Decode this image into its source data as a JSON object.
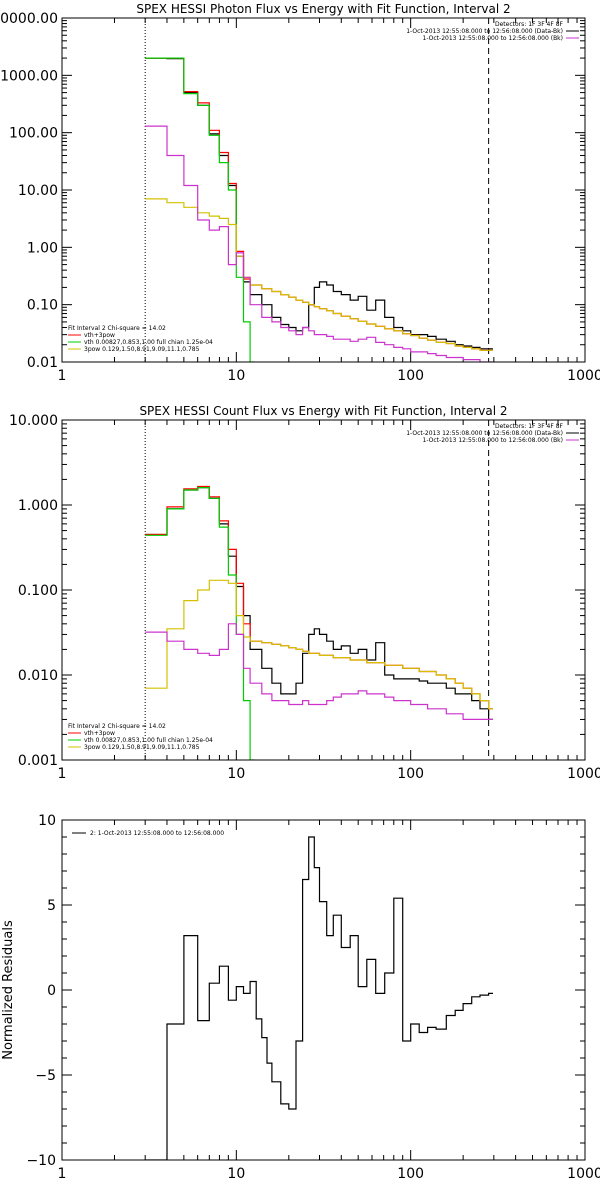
{
  "chart_data": [
    {
      "type": "line",
      "title": "SPEX HESSI Photon Flux vs Energy with Fit Function, Interval 2",
      "xscale": "log",
      "yscale": "log",
      "xlim": [
        1,
        1000
      ],
      "ylim": [
        0.01,
        10000
      ],
      "x_ticks": [
        "1",
        "10",
        "100",
        "1000"
      ],
      "y_ticks": [
        "0.01",
        "0.10",
        "1.00",
        "10.00",
        "100.00",
        "1000.00",
        "10000.00"
      ],
      "vlines": [
        {
          "x": 3,
          "style": "dotted"
        },
        {
          "x": 280,
          "style": "dashed"
        }
      ],
      "legend_right": [
        "Detectors: 1F 3F 4F 8F",
        "1-Oct-2013 12:55:08.000 to 12:56:08.000 (Data-Bk)",
        "1-Oct-2013 12:55:08.000 to 12:56:08.000 (Bk)"
      ],
      "legend_left": [
        "Fit Interval 2   Chi-square = 14.02",
        "vth+3pow",
        "vth 0.00827,0.853,1.00  full chian 1.25e-04",
        "3pow 0.129,1.50,8.91,9.09,11.1,0.785"
      ],
      "series": [
        {
          "name": "Data-Bk",
          "color": "#000000",
          "x": [
            3,
            4,
            5,
            6,
            7,
            8,
            9,
            10,
            11,
            12,
            14,
            16,
            18,
            20,
            22,
            24,
            26,
            28,
            30,
            33,
            36,
            40,
            45,
            50,
            56,
            63,
            71,
            80,
            90,
            100,
            112,
            125,
            140,
            160,
            180,
            200,
            224,
            250,
            280
          ],
          "y": [
            2000,
            1950,
            500,
            300,
            95,
            40,
            12,
            0.7,
            0.25,
            0.15,
            0.1,
            0.06,
            0.045,
            0.04,
            0.035,
            0.04,
            0.1,
            0.2,
            0.25,
            0.22,
            0.17,
            0.15,
            0.12,
            0.14,
            0.08,
            0.12,
            0.06,
            0.04,
            0.035,
            0.03,
            0.03,
            0.028,
            0.025,
            0.023,
            0.02,
            0.019,
            0.018,
            0.017,
            0.017
          ]
        },
        {
          "name": "vth+3pow",
          "color": "#ff0000",
          "x": [
            3,
            4,
            5,
            6,
            7,
            8,
            9,
            10,
            11,
            12,
            14,
            16,
            18,
            20,
            22,
            24,
            26,
            28,
            30,
            33,
            36,
            40,
            45,
            50,
            56,
            63,
            71,
            80,
            90,
            100,
            112,
            125,
            140,
            160,
            180,
            200,
            224,
            250,
            280
          ],
          "y": [
            2000,
            2000,
            520,
            330,
            110,
            45,
            13,
            0.85,
            0.28,
            0.22,
            0.19,
            0.17,
            0.15,
            0.135,
            0.12,
            0.11,
            0.1,
            0.092,
            0.085,
            0.078,
            0.07,
            0.063,
            0.057,
            0.051,
            0.046,
            0.042,
            0.038,
            0.035,
            0.031,
            0.029,
            0.026,
            0.024,
            0.022,
            0.021,
            0.019,
            0.018,
            0.017,
            0.016,
            0.016
          ]
        },
        {
          "name": "vth",
          "color": "#00cc00",
          "x": [
            3,
            4,
            5,
            6,
            7,
            8,
            9,
            10,
            11,
            12
          ],
          "y": [
            2000,
            2000,
            480,
            300,
            90,
            30,
            10,
            0.3,
            0.05,
            0.01
          ]
        },
        {
          "name": "3pow",
          "color": "#d4c000",
          "x": [
            3,
            4,
            5,
            6,
            7,
            8,
            9,
            10,
            11,
            12,
            14,
            16,
            18,
            20,
            22,
            24,
            26,
            28,
            30,
            33,
            36,
            40,
            45,
            50,
            56,
            63,
            71,
            80,
            90,
            100,
            112,
            125,
            140,
            160,
            180,
            200,
            224,
            250,
            280
          ],
          "y": [
            7,
            6,
            5,
            4,
            3.5,
            3.2,
            2.5,
            0.7,
            0.3,
            0.22,
            0.19,
            0.17,
            0.15,
            0.135,
            0.12,
            0.11,
            0.1,
            0.092,
            0.085,
            0.078,
            0.07,
            0.063,
            0.057,
            0.051,
            0.046,
            0.042,
            0.038,
            0.035,
            0.031,
            0.029,
            0.026,
            0.024,
            0.022,
            0.021,
            0.019,
            0.018,
            0.017,
            0.016,
            0.016
          ]
        },
        {
          "name": "Bk",
          "color": "#cc33cc",
          "x": [
            3,
            4,
            5,
            6,
            7,
            8,
            9,
            10,
            11,
            12,
            14,
            16,
            18,
            20,
            22,
            24,
            26,
            28,
            30,
            33,
            36,
            40,
            45,
            50,
            56,
            63,
            71,
            80,
            90,
            100,
            112,
            125,
            140,
            160,
            180,
            200,
            224,
            250,
            280
          ],
          "y": [
            130,
            40,
            12,
            3,
            2,
            2.3,
            0.5,
            0.8,
            0.3,
            0.1,
            0.06,
            0.05,
            0.04,
            0.035,
            0.03,
            0.04,
            0.035,
            0.03,
            0.03,
            0.028,
            0.025,
            0.025,
            0.023,
            0.025,
            0.027,
            0.022,
            0.02,
            0.018,
            0.017,
            0.015,
            0.015,
            0.014,
            0.013,
            0.012,
            0.012,
            0.011,
            0.011,
            0.01,
            0.01
          ]
        }
      ]
    },
    {
      "type": "line",
      "title": "SPEX HESSI Count Flux vs Energy with Fit Function, Interval 2",
      "xscale": "log",
      "yscale": "log",
      "xlim": [
        1,
        1000
      ],
      "ylim": [
        0.001,
        10
      ],
      "x_ticks": [
        "1",
        "10",
        "100",
        "1000"
      ],
      "y_ticks": [
        "0.001",
        "0.010",
        "0.100",
        "1.000",
        "10.000"
      ],
      "vlines": [
        {
          "x": 3,
          "style": "dotted"
        },
        {
          "x": 280,
          "style": "dashed"
        }
      ],
      "legend_right": [
        "Detectors: 1F 3F 4F 8F",
        "1-Oct-2013 12:55:08.000 to 12:56:08.000 (Data-Bk)",
        "1-Oct-2013 12:55:08.000 to 12:56:08.000 (Bk)"
      ],
      "legend_left": [
        "Fit Interval 2   Chi-square = 14.02",
        "vth+3pow",
        "vth 0.00827,0.853,1.00  full chian 1.25e-04",
        "3pow 0.129,1.50,8.91,9.09,11.1,0.785"
      ],
      "series": [
        {
          "name": "Data-Bk",
          "color": "#000000",
          "x": [
            3,
            4,
            5,
            6,
            7,
            8,
            9,
            10,
            11,
            12,
            14,
            16,
            18,
            20,
            22,
            24,
            26,
            28,
            30,
            33,
            36,
            40,
            45,
            50,
            56,
            63,
            71,
            80,
            90,
            100,
            112,
            125,
            140,
            160,
            180,
            200,
            224,
            250,
            280
          ],
          "y": [
            0.45,
            0.9,
            1.5,
            1.6,
            1.2,
            0.6,
            0.25,
            0.11,
            0.05,
            0.02,
            0.012,
            0.008,
            0.006,
            0.006,
            0.008,
            0.018,
            0.03,
            0.035,
            0.03,
            0.025,
            0.02,
            0.022,
            0.018,
            0.02,
            0.015,
            0.024,
            0.01,
            0.009,
            0.009,
            0.009,
            0.0085,
            0.008,
            0.008,
            0.007,
            0.006,
            0.006,
            0.005,
            0.004,
            0.003
          ]
        },
        {
          "name": "vth+3pow",
          "color": "#ff0000",
          "x": [
            3,
            4,
            5,
            6,
            7,
            8,
            9,
            10,
            11,
            12,
            14,
            16,
            18,
            20,
            22,
            24,
            26,
            28,
            30,
            33,
            36,
            40,
            45,
            50,
            56,
            63,
            71,
            80,
            90,
            100,
            112,
            125,
            140,
            160,
            180,
            200,
            224,
            250,
            280
          ],
          "y": [
            0.45,
            0.95,
            1.55,
            1.65,
            1.25,
            0.65,
            0.3,
            0.12,
            0.04,
            0.025,
            0.024,
            0.023,
            0.022,
            0.021,
            0.02,
            0.019,
            0.018,
            0.018,
            0.017,
            0.017,
            0.016,
            0.016,
            0.015,
            0.015,
            0.014,
            0.014,
            0.013,
            0.013,
            0.012,
            0.012,
            0.011,
            0.011,
            0.01,
            0.009,
            0.008,
            0.007,
            0.006,
            0.005,
            0.004
          ]
        },
        {
          "name": "vth",
          "color": "#00cc00",
          "x": [
            3,
            4,
            5,
            6,
            7,
            8,
            9,
            10,
            11,
            12
          ],
          "y": [
            0.44,
            0.9,
            1.5,
            1.6,
            1.2,
            0.55,
            0.15,
            0.03,
            0.005,
            0.001
          ]
        },
        {
          "name": "3pow",
          "color": "#d4c000",
          "x": [
            3,
            4,
            5,
            6,
            7,
            8,
            9,
            10,
            11,
            12,
            14,
            16,
            18,
            20,
            22,
            24,
            26,
            28,
            30,
            33,
            36,
            40,
            45,
            50,
            56,
            63,
            71,
            80,
            90,
            100,
            112,
            125,
            140,
            160,
            180,
            200,
            224,
            250,
            280
          ],
          "y": [
            0.007,
            0.035,
            0.075,
            0.1,
            0.13,
            0.13,
            0.12,
            0.05,
            0.028,
            0.025,
            0.024,
            0.023,
            0.022,
            0.021,
            0.02,
            0.019,
            0.018,
            0.018,
            0.017,
            0.017,
            0.016,
            0.016,
            0.015,
            0.015,
            0.014,
            0.014,
            0.013,
            0.013,
            0.012,
            0.012,
            0.011,
            0.011,
            0.01,
            0.009,
            0.008,
            0.007,
            0.006,
            0.005,
            0.004
          ]
        },
        {
          "name": "Bk",
          "color": "#cc33cc",
          "x": [
            3,
            4,
            5,
            6,
            7,
            8,
            9,
            10,
            11,
            12,
            14,
            16,
            18,
            20,
            22,
            24,
            26,
            28,
            30,
            33,
            36,
            40,
            45,
            50,
            56,
            63,
            71,
            80,
            90,
            100,
            112,
            125,
            140,
            160,
            180,
            200,
            224,
            250,
            280
          ],
          "y": [
            0.032,
            0.025,
            0.02,
            0.018,
            0.017,
            0.02,
            0.04,
            0.03,
            0.012,
            0.008,
            0.006,
            0.005,
            0.005,
            0.0045,
            0.0045,
            0.005,
            0.0045,
            0.0045,
            0.0045,
            0.005,
            0.0055,
            0.006,
            0.006,
            0.0065,
            0.006,
            0.006,
            0.0055,
            0.005,
            0.005,
            0.0045,
            0.0045,
            0.004,
            0.004,
            0.0035,
            0.0035,
            0.003,
            0.003,
            0.003,
            0.003
          ]
        }
      ]
    },
    {
      "type": "line",
      "title": "",
      "xscale": "log",
      "yscale": "linear",
      "ylabel": "Normalized Residuals",
      "xlim": [
        1,
        1000
      ],
      "ylim": [
        -10,
        10
      ],
      "x_ticks": [
        "1",
        "10",
        "100",
        "1000"
      ],
      "y_ticks": [
        "10",
        "5",
        "0",
        "−5",
        "−10"
      ],
      "legend": [
        "2: 1-Oct-2013 12:55:08.000 to 12:56:08.000"
      ],
      "series": [
        {
          "name": "2: 1-Oct-2013 12:55:08.000 to 12:56:08.000",
          "color": "#000000",
          "x": [
            3,
            4,
            5,
            6,
            7,
            8,
            9,
            10,
            11,
            12,
            13,
            14,
            15,
            16,
            18,
            20,
            22,
            24,
            26,
            28,
            30,
            33,
            36,
            40,
            45,
            50,
            56,
            63,
            71,
            80,
            90,
            100,
            112,
            125,
            140,
            160,
            180,
            200,
            224,
            250,
            280
          ],
          "y": [
            -10,
            -2,
            3.2,
            -1.8,
            0.4,
            1.4,
            -0.6,
            0.2,
            -0.2,
            0.5,
            -1.7,
            -2.8,
            -4.3,
            -5.4,
            -6.7,
            -7,
            -3,
            6.5,
            9,
            7.2,
            5.2,
            3.2,
            4.4,
            2.5,
            3.2,
            0.2,
            1.8,
            -0.2,
            1,
            5.4,
            -3,
            -2,
            -2.5,
            -2.2,
            -2.3,
            -1.5,
            -1.2,
            -0.8,
            -0.4,
            -0.3,
            -0.2
          ]
        }
      ]
    }
  ]
}
